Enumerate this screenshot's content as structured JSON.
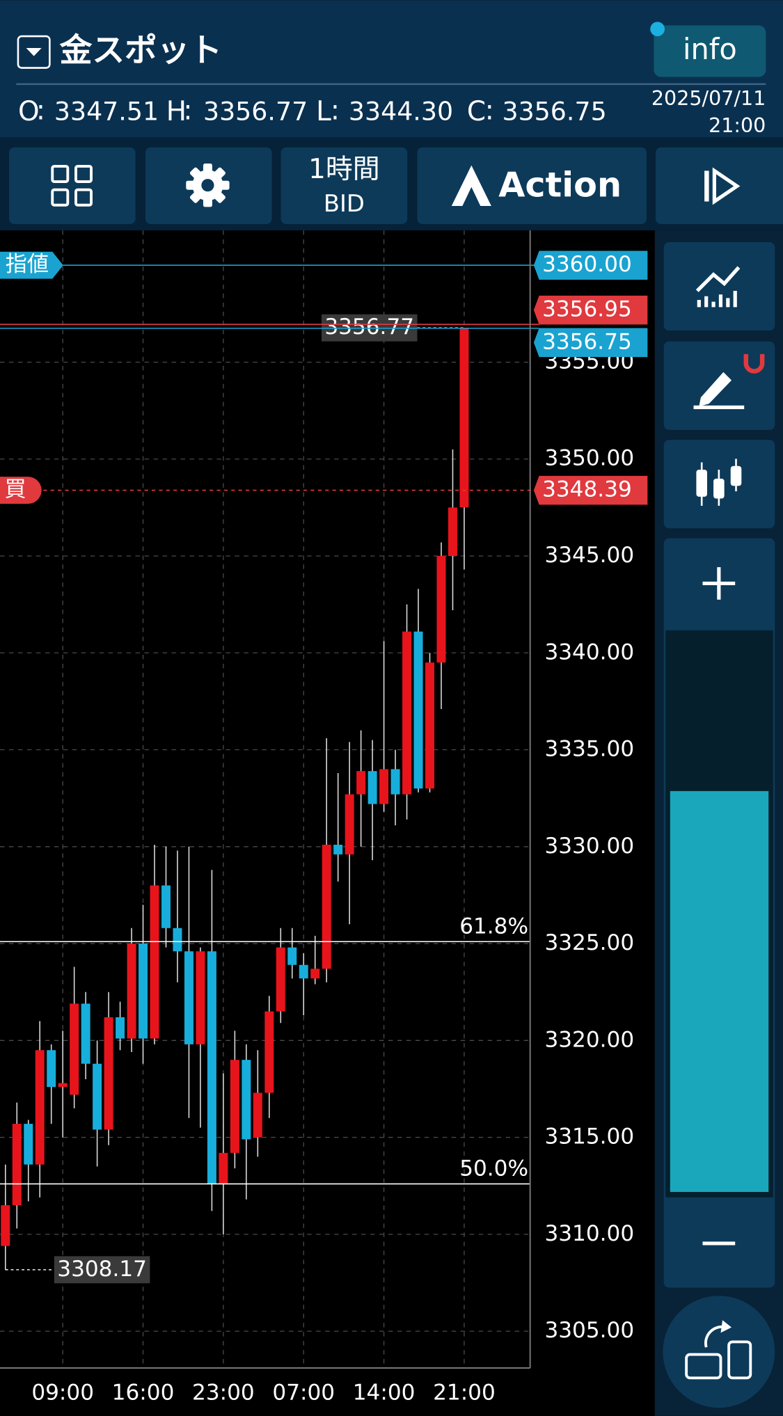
{
  "header": {
    "symbol": "金スポット",
    "info": "info",
    "separator": ":",
    "ohlc": [
      {
        "label": "O",
        "value": "3347.51"
      },
      {
        "label": "H",
        "value": "3356.77"
      },
      {
        "label": "L",
        "value": "3344.30"
      },
      {
        "label": "C",
        "value": "3356.75"
      }
    ],
    "date": "2025/07/11",
    "time": "21:00"
  },
  "toolbar": {
    "timeframe": "1時間",
    "price_type": "BID",
    "action": "Action"
  },
  "chart_data": {
    "type": "candlestick",
    "categories": [
      null,
      null,
      null,
      null,
      null,
      "09:00",
      null,
      null,
      null,
      null,
      null,
      null,
      "16:00",
      null,
      null,
      null,
      null,
      null,
      null,
      "23:00",
      null,
      null,
      null,
      null,
      null,
      null,
      "07:00",
      null,
      null,
      null,
      null,
      null,
      null,
      "14:00",
      null,
      null,
      null,
      null,
      null,
      null,
      "21:00"
    ],
    "open": [
      3309.4,
      3311.5,
      3315.7,
      3313.6,
      3319.5,
      3317.6,
      3317.2,
      3321.9,
      3318.8,
      3315.4,
      3321.2,
      3320.1,
      3325.0,
      3320.1,
      3328.0,
      3325.8,
      3324.6,
      3319.8,
      3324.6,
      3312.6,
      3314.2,
      3319.0,
      3315.0,
      3317.3,
      3321.5,
      3324.8,
      3323.9,
      3323.2,
      3323.7,
      3330.1,
      3329.6,
      3332.7,
      3333.9,
      3332.2,
      3334.0,
      3332.7,
      3341.1,
      3333.0,
      3339.5,
      3345.0,
      3347.51
    ],
    "high": [
      3313.6,
      3316.8,
      3315.9,
      3321.0,
      3319.8,
      3320.5,
      3323.8,
      3322.5,
      3320.0,
      3322.5,
      3322.0,
      3325.8,
      3327.0,
      3330.1,
      3330.0,
      3329.8,
      3330.0,
      3324.8,
      3328.8,
      3318.3,
      3320.5,
      3319.8,
      3319.5,
      3322.3,
      3325.8,
      3325.8,
      3324.5,
      3325.4,
      3335.6,
      3333.8,
      3335.4,
      3336.0,
      3335.5,
      3340.6,
      3335.0,
      3342.5,
      3343.3,
      3340.0,
      3345.7,
      3350.5,
      3356.77
    ],
    "low": [
      3308.17,
      3310.3,
      3311.7,
      3311.9,
      3315.7,
      3315.0,
      3316.5,
      3318.0,
      3313.5,
      3314.6,
      3319.5,
      3319.4,
      3318.8,
      3319.8,
      3324.8,
      3323.0,
      3316.0,
      3315.5,
      3311.2,
      3310.0,
      3313.4,
      3311.8,
      3314.0,
      3316.0,
      3320.9,
      3323.2,
      3321.3,
      3322.9,
      3323.0,
      3328.2,
      3326.0,
      3330.0,
      3329.3,
      3331.8,
      3331.1,
      3331.4,
      3332.8,
      3332.8,
      3337.1,
      3342.2,
      3344.3
    ],
    "close": [
      3311.5,
      3315.7,
      3313.6,
      3319.5,
      3317.6,
      3317.8,
      3321.9,
      3318.8,
      3315.4,
      3321.2,
      3320.1,
      3325.0,
      3320.1,
      3328.0,
      3325.8,
      3324.6,
      3319.8,
      3324.6,
      3312.6,
      3314.2,
      3319.0,
      3314.9,
      3317.3,
      3321.5,
      3324.8,
      3323.9,
      3323.2,
      3323.7,
      3330.1,
      3329.6,
      3332.7,
      3333.9,
      3332.2,
      3334.0,
      3332.7,
      3341.1,
      3333.0,
      3339.5,
      3345.0,
      3347.5,
      3356.75
    ],
    "up_color": "#e8141c",
    "down_color": "#17aedc",
    "ylim": [
      3303.1,
      3361.8
    ],
    "yticks": [
      {
        "value": 3305,
        "label": "3305.00"
      },
      {
        "value": 3310,
        "label": "3310.00"
      },
      {
        "value": 3315,
        "label": "3315.00"
      },
      {
        "value": 3320,
        "label": "3320.00"
      },
      {
        "value": 3325,
        "label": "3325.00"
      },
      {
        "value": 3330,
        "label": "3330.00"
      },
      {
        "value": 3335,
        "label": "3335.00"
      },
      {
        "value": 3340,
        "label": "3340.00"
      },
      {
        "value": 3345,
        "label": "3345.00"
      },
      {
        "value": 3350,
        "label": "3350.00"
      },
      {
        "value": 3355,
        "label": "3355.00"
      }
    ],
    "grid": true,
    "price_lines": [
      {
        "value": 3360,
        "label": "3360.00",
        "tag": "指値",
        "color": "#1aa3d0",
        "style": "solid"
      },
      {
        "value": 3356.95,
        "label": "3356.95",
        "color": "#e0393e",
        "style": "solid"
      },
      {
        "value": 3356.75,
        "label": "3356.75",
        "color": "#1aa3d0",
        "style": "solid"
      },
      {
        "value": 3348.39,
        "label": "3348.39",
        "tag": "買",
        "color": "#e0393e",
        "style": "dashed"
      }
    ],
    "fib_levels": [
      {
        "price": 3325.1,
        "text": "61.8%"
      },
      {
        "price": 3312.6,
        "text": "50.0%"
      }
    ],
    "high_annotation": 3356.77,
    "low_annotation": 3308.17
  }
}
